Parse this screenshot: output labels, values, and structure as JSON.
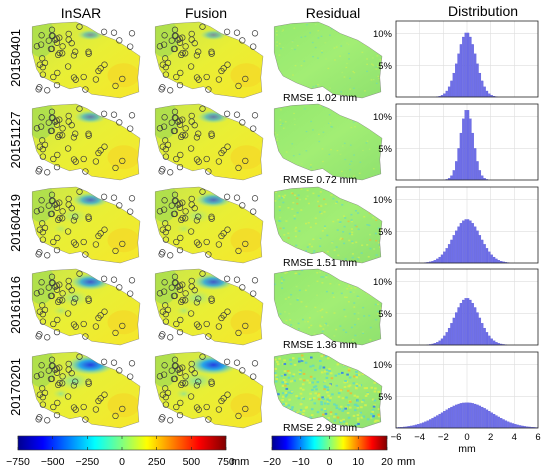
{
  "chart_data": {
    "type": "figure-grid",
    "column_titles": [
      "InSAR",
      "Fusion",
      "Residual",
      "Distribution"
    ],
    "row_labels": [
      "20150401",
      "20151127",
      "20160419",
      "20161016",
      "20170201"
    ],
    "rmse_prefix": "RMSE",
    "rmse_values_mm": [
      1.02,
      0.72,
      1.51,
      1.36,
      2.98
    ],
    "rmse_unit": "mm",
    "rmse_texts": [
      "RMSE 1.02 mm",
      "RMSE 0.72 mm",
      "RMSE 1.51 mm",
      "RMSE 1.36 mm",
      "RMSE 2.98 mm"
    ],
    "displacement_colorbar": {
      "range": [
        -750,
        750
      ],
      "ticks": [
        -750,
        -500,
        -250,
        0,
        250,
        500,
        750
      ],
      "tick_labels": [
        "−750",
        "−500",
        "−250",
        "0",
        "250",
        "500",
        "750"
      ],
      "unit": "mm",
      "colormap": "jet"
    },
    "residual_colorbar": {
      "range": [
        -20,
        20
      ],
      "ticks": [
        -20,
        -10,
        0,
        10,
        20
      ],
      "tick_labels": [
        "−20",
        "−10",
        "0",
        "10",
        "20"
      ],
      "unit": "mm",
      "colormap": "jet"
    },
    "histograms": {
      "type": "bar",
      "xlabel": "mm",
      "xlim": [
        -6,
        6
      ],
      "x_ticks": [
        -6,
        -4,
        -2,
        0,
        2,
        4,
        6
      ],
      "x_tick_labels": [
        "−6",
        "−4",
        "−2",
        "0",
        "2",
        "4",
        "6"
      ],
      "ylim_percent": [
        0,
        12
      ],
      "y_ticks_percent": [
        0,
        5,
        10
      ],
      "y_tick_labels": [
        "",
        "5%",
        "10%"
      ],
      "grid": true,
      "bar_color": "#6f6fe8",
      "bin_width_mm": 0.2,
      "series": [
        {
          "row": "20150401",
          "peak_percent": 10.2,
          "sigma_mm": 0.78
        },
        {
          "row": "20151127",
          "peak_percent": 11.2,
          "sigma_mm": 0.55
        },
        {
          "row": "20160419",
          "peak_percent": 6.9,
          "sigma_mm": 1.15
        },
        {
          "row": "20161016",
          "peak_percent": 7.4,
          "sigma_mm": 1.05
        },
        {
          "row": "20170201",
          "peak_percent": 4.0,
          "sigma_mm": 2.1
        }
      ]
    }
  }
}
